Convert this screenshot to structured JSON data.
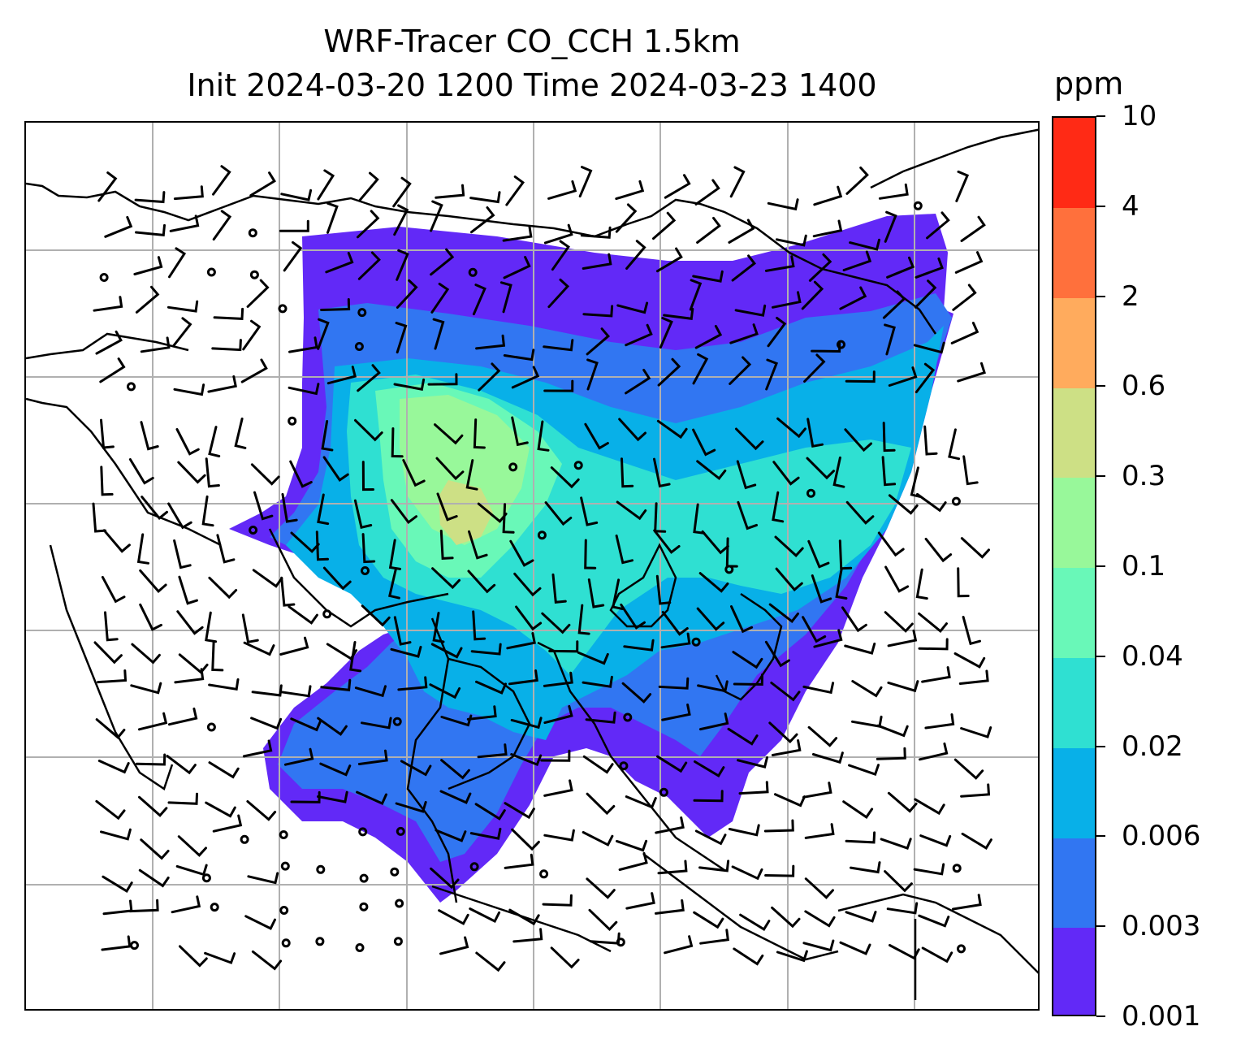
{
  "title": {
    "line1": "WRF-Tracer CO_CCH 1.5km",
    "line2": "Init 2024-03-20 1200 Time 2024-03-23 1400"
  },
  "colorbar": {
    "unit": "ppm",
    "levels": [
      "0.001",
      "0.003",
      "0.006",
      "0.02",
      "0.04",
      "0.1",
      "0.3",
      "0.6",
      "2",
      "4",
      "10"
    ],
    "colors": [
      "#6229f7",
      "#3176f2",
      "#08b0e8",
      "#2fe0d2",
      "#69f8b8",
      "#98f89a",
      "#cde085",
      "#ffab5d",
      "#ff703c",
      "#ff2a15"
    ]
  },
  "map": {
    "gridlines": true,
    "gridline_color": "#b0b0b0",
    "tracer_field_present": true,
    "wind_barbs": true
  }
}
